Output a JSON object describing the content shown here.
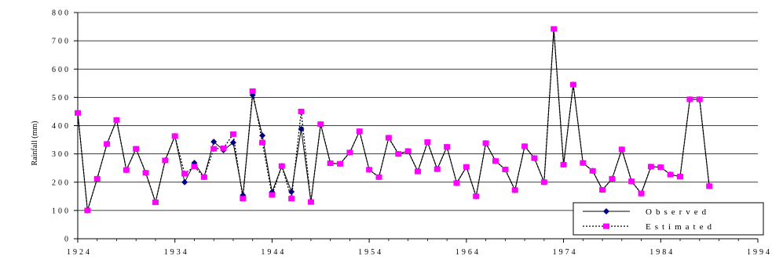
{
  "chart_data": {
    "type": "line",
    "ylabel": "Rainfall (mm)",
    "xlim": [
      1924,
      1994
    ],
    "ylim": [
      0,
      800
    ],
    "x_ticks": [
      "1924",
      "1934",
      "1944",
      "1954",
      "1964",
      "1974",
      "1984",
      "1994"
    ],
    "y_ticks": [
      "0",
      "100",
      "200",
      "300",
      "400",
      "500",
      "600",
      "700",
      "800"
    ],
    "grid": "horizontal",
    "legend_position": "bottom-right",
    "years": [
      1924,
      1925,
      1926,
      1927,
      1928,
      1929,
      1930,
      1931,
      1932,
      1933,
      1934,
      1935,
      1936,
      1937,
      1938,
      1939,
      1940,
      1941,
      1942,
      1943,
      1944,
      1945,
      1946,
      1947,
      1948,
      1949,
      1950,
      1951,
      1952,
      1953,
      1954,
      1955,
      1956,
      1957,
      1958,
      1959,
      1960,
      1961,
      1962,
      1963,
      1964,
      1965,
      1966,
      1967,
      1968,
      1969,
      1970,
      1971,
      1972,
      1973,
      1974,
      1975,
      1976,
      1977,
      1978,
      1979,
      1980,
      1981,
      1982,
      1983,
      1984,
      1985,
      1986,
      1987,
      1988,
      1989
    ],
    "series": [
      {
        "name": "Observed",
        "color": "#000080",
        "values": [
          445,
          100,
          212,
          335,
          420,
          243,
          318,
          233,
          129,
          277,
          363,
          200,
          268,
          218,
          343,
          313,
          340,
          154,
          508,
          365,
          165,
          257,
          166,
          388,
          130,
          405,
          267,
          265,
          305,
          380,
          244,
          218,
          357,
          300,
          310,
          238,
          342,
          246,
          325,
          197,
          254,
          150,
          338,
          275,
          245,
          172,
          327,
          285,
          200,
          740,
          262,
          545,
          268,
          240,
          173,
          212,
          316,
          203,
          160,
          255,
          253,
          227,
          220,
          493,
          493,
          186
        ]
      },
      {
        "name": "Estimated",
        "color": "#ff00ff",
        "values": [
          445,
          100,
          212,
          335,
          420,
          243,
          318,
          233,
          129,
          277,
          363,
          230,
          255,
          218,
          318,
          320,
          370,
          142,
          522,
          340,
          155,
          257,
          142,
          450,
          130,
          405,
          267,
          265,
          305,
          380,
          244,
          218,
          357,
          300,
          310,
          238,
          342,
          246,
          325,
          197,
          254,
          150,
          338,
          275,
          245,
          172,
          327,
          285,
          200,
          742,
          262,
          545,
          268,
          240,
          173,
          212,
          316,
          203,
          160,
          255,
          253,
          227,
          220,
          493,
          493,
          186
        ]
      }
    ]
  }
}
